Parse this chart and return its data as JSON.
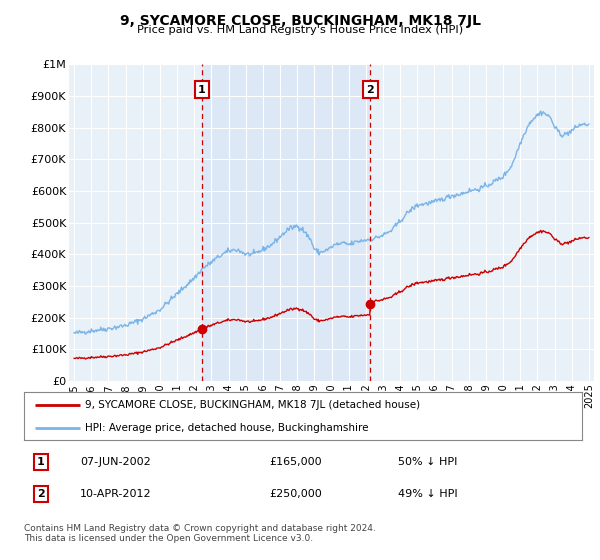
{
  "title": "9, SYCAMORE CLOSE, BUCKINGHAM, MK18 7JL",
  "subtitle": "Price paid vs. HM Land Registry's House Price Index (HPI)",
  "ylabel_ticks": [
    "£0",
    "£100K",
    "£200K",
    "£300K",
    "£400K",
    "£500K",
    "£600K",
    "£700K",
    "£800K",
    "£900K",
    "£1M"
  ],
  "ytick_values": [
    0,
    100000,
    200000,
    300000,
    400000,
    500000,
    600000,
    700000,
    800000,
    900000,
    1000000
  ],
  "ylim": [
    0,
    1000000
  ],
  "xlim_start": 1994.7,
  "xlim_end": 2025.3,
  "xticks": [
    1995,
    1996,
    1997,
    1998,
    1999,
    2000,
    2001,
    2002,
    2003,
    2004,
    2005,
    2006,
    2007,
    2008,
    2009,
    2010,
    2011,
    2012,
    2013,
    2014,
    2015,
    2016,
    2017,
    2018,
    2019,
    2020,
    2021,
    2022,
    2023,
    2024,
    2025
  ],
  "hpi_color": "#7ab4e8",
  "price_color": "#cc0000",
  "marker1_date": 2002.44,
  "marker1_price": 165000,
  "marker2_date": 2012.27,
  "marker2_price": 250000,
  "legend_line1": "9, SYCAMORE CLOSE, BUCKINGHAM, MK18 7JL (detached house)",
  "legend_line2": "HPI: Average price, detached house, Buckinghamshire",
  "footer": "Contains HM Land Registry data © Crown copyright and database right 2024.\nThis data is licensed under the Open Government Licence v3.0.",
  "vline_color": "#cc0000",
  "shade_color": "#dce8f5",
  "bg_color": "#e8f0f8",
  "plot_bg": "#ffffff",
  "grid_color": "#ffffff"
}
